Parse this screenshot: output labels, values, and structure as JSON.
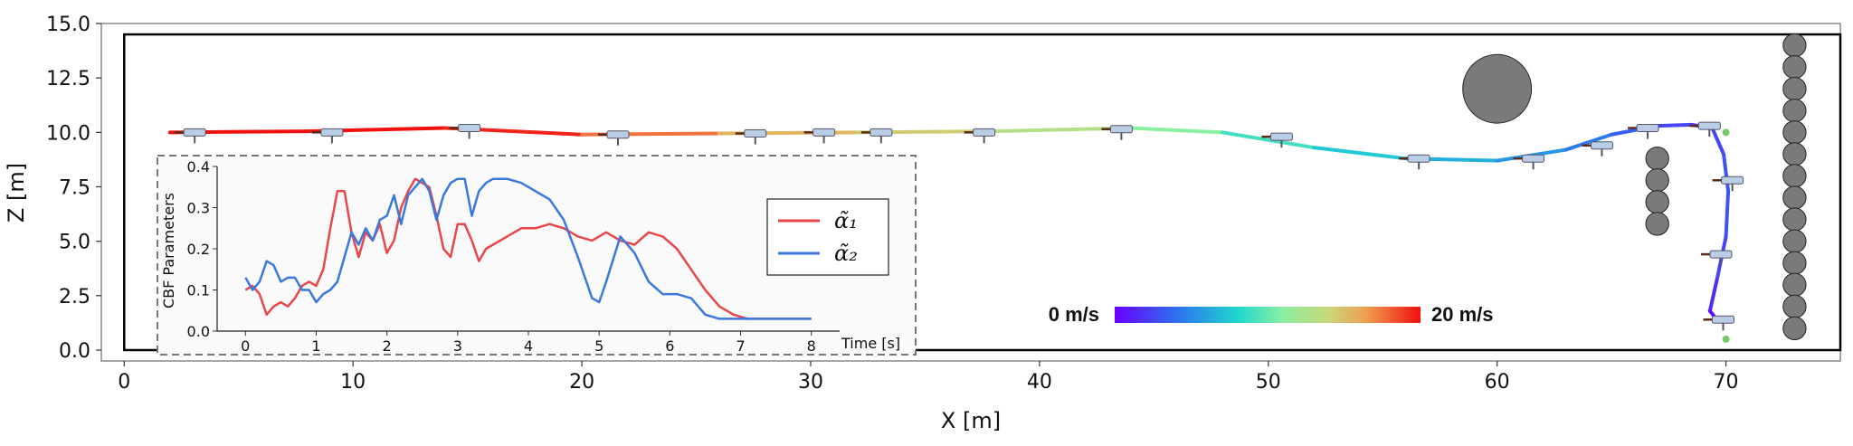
{
  "colors": {
    "alpha1": "#e8474a",
    "alpha2": "#3a78e0",
    "obstacle_fill": "#7a7a7a",
    "drone_body": "#b9cde6",
    "goal_marker": "#76c86a"
  },
  "chart_data": [
    {
      "type": "line",
      "xlabel": "X [m]",
      "ylabel": "Z [m]",
      "xlim": [
        -1,
        75
      ],
      "ylim": [
        -0.5,
        15
      ],
      "xticks": [
        0,
        10,
        20,
        30,
        40,
        50,
        60,
        70
      ],
      "yticks": [
        0.0,
        2.5,
        5.0,
        7.5,
        10.0,
        12.5,
        15.0
      ],
      "xtick_labels": [
        "0",
        "10",
        "20",
        "30",
        "40",
        "50",
        "60",
        "70"
      ],
      "ytick_labels": [
        "0.0",
        "2.5",
        "5.0",
        "7.5",
        "10.0",
        "12.5",
        "15.0"
      ],
      "grid": false,
      "boundary": {
        "x": [
          0,
          75
        ],
        "z": [
          0,
          14.5
        ]
      },
      "trajectory": {
        "x": [
          2,
          8,
          14,
          20,
          26,
          32,
          38,
          44,
          48,
          52,
          56,
          60,
          63,
          65,
          67,
          68.5,
          69.4,
          69.9,
          70.1,
          70.0,
          69.6,
          69.3,
          69.6
        ],
        "z": [
          10.0,
          10.05,
          10.2,
          9.9,
          9.95,
          10.0,
          10.05,
          10.2,
          10.0,
          9.3,
          8.8,
          8.7,
          9.2,
          9.9,
          10.3,
          10.35,
          10.2,
          9.0,
          7.3,
          5.2,
          3.2,
          1.8,
          1.4
        ],
        "speed_ms": [
          20,
          20,
          20,
          19,
          16,
          15,
          14,
          12,
          10,
          8,
          7,
          6,
          5,
          4,
          3,
          2,
          2,
          3,
          3,
          3,
          2,
          1,
          0
        ]
      },
      "drones": [
        {
          "x": 3,
          "z": 10.0
        },
        {
          "x": 9,
          "z": 10.0
        },
        {
          "x": 15,
          "z": 10.2
        },
        {
          "x": 21.5,
          "z": 9.9
        },
        {
          "x": 27.5,
          "z": 9.95
        },
        {
          "x": 30.5,
          "z": 10.0
        },
        {
          "x": 33,
          "z": 10.0
        },
        {
          "x": 37.5,
          "z": 10.0
        },
        {
          "x": 43.5,
          "z": 10.15
        },
        {
          "x": 50.5,
          "z": 9.8
        },
        {
          "x": 56.5,
          "z": 8.8
        },
        {
          "x": 61.5,
          "z": 8.8
        },
        {
          "x": 64.5,
          "z": 9.4
        },
        {
          "x": 66.5,
          "z": 10.2
        },
        {
          "x": 69.2,
          "z": 10.3
        },
        {
          "x": 70.2,
          "z": 7.8
        },
        {
          "x": 69.7,
          "z": 4.4
        },
        {
          "x": 69.8,
          "z": 1.4
        }
      ],
      "goal_points": [
        {
          "x": 70,
          "z": 10.0
        },
        {
          "x": 70,
          "z": 0.5
        }
      ],
      "obstacles": [
        {
          "x": 60,
          "z": 12.0,
          "r": 1.5
        },
        {
          "x": 67.0,
          "z": 8.8,
          "r": 0.5
        },
        {
          "x": 67.0,
          "z": 7.8,
          "r": 0.5
        },
        {
          "x": 67.0,
          "z": 6.8,
          "r": 0.5
        },
        {
          "x": 67.0,
          "z": 5.8,
          "r": 0.5
        },
        {
          "x": 73,
          "z": 14.0,
          "r": 0.5
        },
        {
          "x": 73,
          "z": 13.0,
          "r": 0.5
        },
        {
          "x": 73,
          "z": 12.0,
          "r": 0.5
        },
        {
          "x": 73,
          "z": 11.0,
          "r": 0.5
        },
        {
          "x": 73,
          "z": 10.0,
          "r": 0.5
        },
        {
          "x": 73,
          "z": 9.0,
          "r": 0.5
        },
        {
          "x": 73,
          "z": 8.0,
          "r": 0.5
        },
        {
          "x": 73,
          "z": 7.0,
          "r": 0.5
        },
        {
          "x": 73,
          "z": 6.0,
          "r": 0.5
        },
        {
          "x": 73,
          "z": 5.0,
          "r": 0.5
        },
        {
          "x": 73,
          "z": 4.0,
          "r": 0.5
        },
        {
          "x": 73,
          "z": 3.0,
          "r": 0.5
        },
        {
          "x": 73,
          "z": 2.0,
          "r": 0.5
        },
        {
          "x": 73,
          "z": 1.0,
          "r": 0.5
        }
      ],
      "colorbar": {
        "min_label": "0 m/s",
        "max_label": "20 m/s",
        "min": 0,
        "max": 20
      }
    },
    {
      "type": "line",
      "xlabel": "Time [s]",
      "ylabel": "CBF Parameters",
      "xlim": [
        -0.4,
        8.4
      ],
      "ylim": [
        0.0,
        0.4
      ],
      "xticks": [
        0,
        1,
        2,
        3,
        4,
        5,
        6,
        7,
        8
      ],
      "yticks": [
        0.0,
        0.1,
        0.2,
        0.3,
        0.4
      ],
      "xtick_labels": [
        "0",
        "1",
        "2",
        "3",
        "4",
        "5",
        "6",
        "7",
        "8"
      ],
      "ytick_labels": [
        "0.0",
        "0.1",
        "0.2",
        "0.3",
        "0.4"
      ],
      "legend": "upper right",
      "series": [
        {
          "name": "α̃₁",
          "x": [
            0,
            0.1,
            0.2,
            0.3,
            0.4,
            0.5,
            0.6,
            0.7,
            0.8,
            0.9,
            1.0,
            1.1,
            1.2,
            1.3,
            1.4,
            1.5,
            1.6,
            1.7,
            1.8,
            1.9,
            2.0,
            2.1,
            2.2,
            2.3,
            2.4,
            2.5,
            2.6,
            2.7,
            2.8,
            2.9,
            3.0,
            3.1,
            3.2,
            3.3,
            3.4,
            3.5,
            3.7,
            3.9,
            4.1,
            4.3,
            4.5,
            4.7,
            4.9,
            5.1,
            5.3,
            5.5,
            5.7,
            5.9,
            6.1,
            6.3,
            6.5,
            6.7,
            6.9,
            7.1,
            7.3,
            7.5,
            8.0
          ],
          "values": [
            0.1,
            0.11,
            0.09,
            0.04,
            0.06,
            0.07,
            0.06,
            0.08,
            0.11,
            0.12,
            0.11,
            0.15,
            0.25,
            0.34,
            0.34,
            0.24,
            0.18,
            0.24,
            0.22,
            0.26,
            0.19,
            0.22,
            0.3,
            0.34,
            0.37,
            0.36,
            0.35,
            0.28,
            0.2,
            0.18,
            0.26,
            0.26,
            0.22,
            0.17,
            0.2,
            0.21,
            0.23,
            0.25,
            0.25,
            0.26,
            0.25,
            0.23,
            0.22,
            0.24,
            0.22,
            0.21,
            0.24,
            0.23,
            0.2,
            0.15,
            0.1,
            0.06,
            0.04,
            0.03,
            0.03,
            0.03,
            0.03
          ]
        },
        {
          "name": "α̃₂",
          "x": [
            0,
            0.1,
            0.2,
            0.3,
            0.4,
            0.5,
            0.6,
            0.7,
            0.8,
            0.9,
            1.0,
            1.1,
            1.2,
            1.3,
            1.4,
            1.5,
            1.6,
            1.7,
            1.8,
            1.9,
            2.0,
            2.1,
            2.2,
            2.3,
            2.4,
            2.5,
            2.6,
            2.7,
            2.8,
            2.9,
            3.0,
            3.1,
            3.2,
            3.3,
            3.4,
            3.5,
            3.7,
            3.9,
            4.1,
            4.3,
            4.5,
            4.7,
            4.9,
            5.0,
            5.1,
            5.3,
            5.5,
            5.7,
            5.9,
            6.1,
            6.3,
            6.5,
            6.7,
            6.9,
            7.1,
            7.3,
            7.5,
            8.0
          ],
          "values": [
            0.13,
            0.1,
            0.12,
            0.17,
            0.16,
            0.12,
            0.13,
            0.13,
            0.1,
            0.1,
            0.07,
            0.09,
            0.1,
            0.12,
            0.18,
            0.24,
            0.21,
            0.25,
            0.22,
            0.27,
            0.28,
            0.33,
            0.26,
            0.33,
            0.35,
            0.37,
            0.34,
            0.27,
            0.33,
            0.36,
            0.37,
            0.37,
            0.28,
            0.34,
            0.36,
            0.37,
            0.37,
            0.36,
            0.34,
            0.32,
            0.27,
            0.18,
            0.08,
            0.07,
            0.12,
            0.23,
            0.19,
            0.12,
            0.09,
            0.09,
            0.08,
            0.04,
            0.03,
            0.03,
            0.03,
            0.03,
            0.03,
            0.03
          ]
        }
      ]
    }
  ]
}
